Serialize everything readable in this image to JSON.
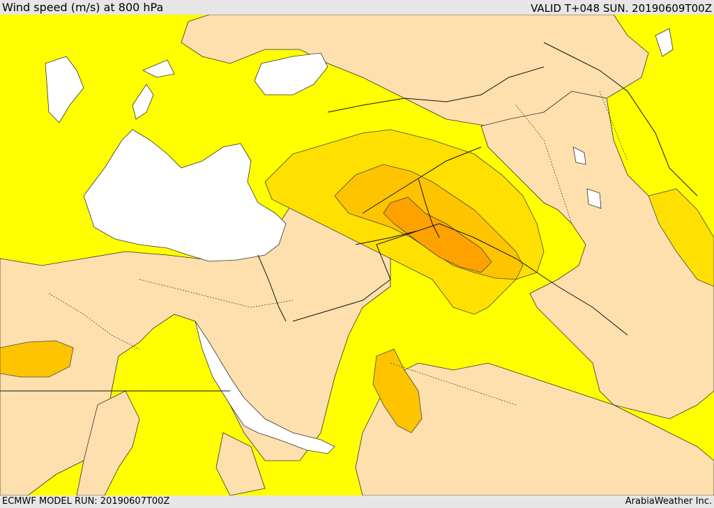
{
  "header": {
    "title": "Wind speed (m/s) at 800 hPa",
    "valid_time": "VALID T+048 SUN. 20190609T00Z"
  },
  "footer": {
    "model_run": "ECMWF MODEL RUN: 20190607T00Z",
    "credit": "ArabiaWeather Inc."
  },
  "map": {
    "region": "Eastern Mediterranean / Levant / Northern Arabia",
    "colors": {
      "water": "#ffffff",
      "band_lowest": "#fde0ad",
      "band_low": "#ffff00",
      "band_mid": "#ffe000",
      "band_high": "#ffc400",
      "band_highest": "#ffa200",
      "boundary_line": "#222222",
      "frame_background": "#e6e6e6"
    }
  }
}
